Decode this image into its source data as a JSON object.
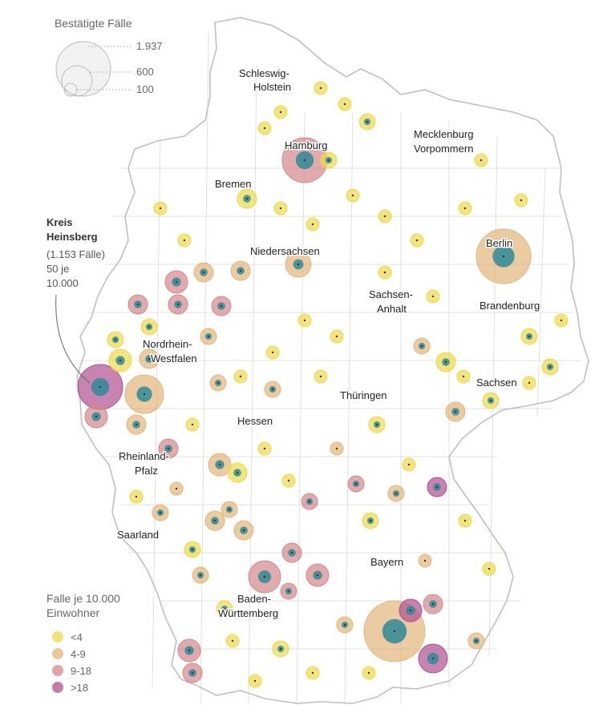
{
  "size_legend": {
    "title": "Bestätigte Fälle",
    "values": [
      "1.937",
      "600",
      "100"
    ]
  },
  "color_legend": {
    "title_line1": "Falle je 10.000",
    "title_line2": "Einwohner",
    "classes": [
      {
        "label": "<4",
        "color": "#ecd94a"
      },
      {
        "label": "4-9",
        "color": "#e3b57a"
      },
      {
        "label": "9-18",
        "color": "#d4878a"
      },
      {
        "label": ">18",
        "color": "#b1508f"
      }
    ]
  },
  "callout": {
    "line1": "Kreis",
    "line2": "Heinsberg",
    "line3": "(1.153 Fälle)",
    "line4": "50 je",
    "line5": "10.000"
  },
  "regions": {
    "sh1": "Schleswig-",
    "sh2": "Holstein",
    "hamburg": "Hamburg",
    "mv1": "Mecklenburg",
    "mv2": "Vorpommern",
    "bremen": "Bremen",
    "berlin": "Berlin",
    "niedersachsen": "Niedersachsen",
    "sa1": "Sachsen-",
    "sa2": "Anhalt",
    "brandenburg": "Brandenburg",
    "nrw1": "Nordrhein-",
    "nrw2": "Westfalen",
    "sachsen": "Sachsen",
    "thueringen": "Thüringen",
    "hessen": "Hessen",
    "rp1": "Rheinland-",
    "rp2": "Pfalz",
    "saarland": "Saarland",
    "bayern": "Bayern",
    "bw1": "Baden-",
    "bw2": "Württemberg"
  },
  "colors": {
    "low": "#ecd94a",
    "mid": "#e3b57a",
    "high": "#d4878a",
    "vhigh": "#b1508f",
    "core": "#2e8a96",
    "border": "#c9c9c9"
  }
}
